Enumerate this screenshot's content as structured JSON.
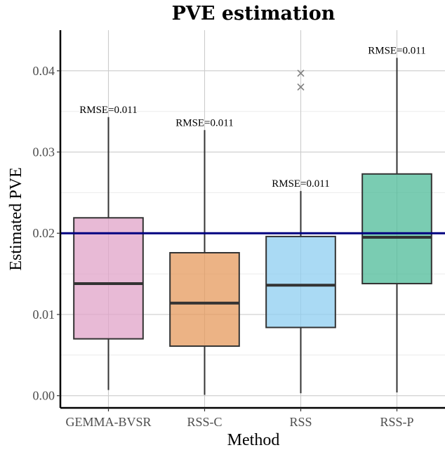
{
  "chart_data": {
    "type": "box",
    "title": "PVE estimation",
    "xlabel": "Method",
    "ylabel": "Estimated PVE",
    "ylim": [
      -0.0015,
      0.045
    ],
    "yticks": [
      0.0,
      0.01,
      0.02,
      0.03,
      0.04
    ],
    "ytick_labels": [
      "0.00",
      "0.01",
      "0.02",
      "0.03",
      "0.04"
    ],
    "grid": true,
    "reference_line": {
      "y": 0.02,
      "color": "#000080"
    },
    "categories": [
      "GEMMA-BVSR",
      "RSS-C",
      "RSS",
      "RSS-P"
    ],
    "boxes": [
      {
        "name": "GEMMA-BVSR",
        "whisker_low": 0.0007,
        "q1": 0.007,
        "median": 0.0138,
        "q3": 0.0219,
        "whisker_high": 0.0343,
        "outliers": [],
        "color": "#e0a3c8",
        "annotation": "RMSE=0.011"
      },
      {
        "name": "RSS-C",
        "whisker_low": 0.0001,
        "q1": 0.0061,
        "median": 0.0114,
        "q3": 0.0176,
        "whisker_high": 0.0327,
        "outliers": [],
        "color": "#e69a5c",
        "annotation": "RMSE=0.011"
      },
      {
        "name": "RSS",
        "whisker_low": 0.0003,
        "q1": 0.0084,
        "median": 0.0136,
        "q3": 0.0196,
        "whisker_high": 0.0252,
        "outliers": [
          0.0397,
          0.038
        ],
        "color": "#8ecdf0",
        "annotation": "RMSE=0.011"
      },
      {
        "name": "RSS-P",
        "whisker_low": 0.0004,
        "q1": 0.0138,
        "median": 0.0195,
        "q3": 0.0273,
        "whisker_high": 0.0416,
        "outliers": [],
        "color": "#4dbb98",
        "annotation": "RMSE=0.011"
      }
    ]
  }
}
